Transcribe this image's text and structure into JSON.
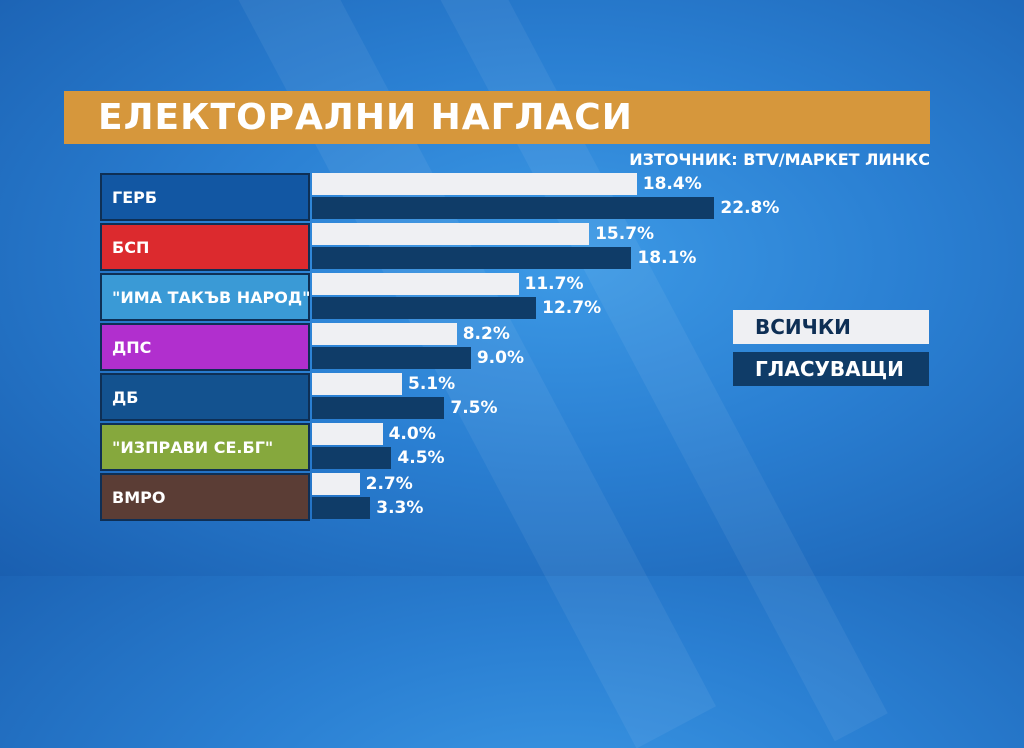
{
  "title": "ЕЛЕКТОРАЛНИ НАГЛАСИ",
  "source": "ИЗТОЧНИК: BTV/МАРКЕТ ЛИНКС",
  "legend": {
    "all": "ВСИЧКИ",
    "voters": "ГЛАСУВАЩИ"
  },
  "colors": {
    "title_bg": "#d6973c",
    "all_bar": "#eff0f3",
    "voters_bar": "#0f3c68",
    "gerb": "#1257a3",
    "bsp": "#dc2a2e",
    "itn": "#3a9ad6",
    "dps": "#b12fce",
    "db": "#13528f",
    "izpravi": "#86a83d",
    "vmro": "#5b3d35"
  },
  "chart_data": {
    "type": "bar",
    "orientation": "horizontal",
    "title": "ЕЛЕКТОРАЛНИ НАГЛАСИ",
    "categories": [
      "ГЕРБ",
      "БСП",
      "\"ИМА ТАКЪВ НАРОД\"",
      "ДПС",
      "ДБ",
      "\"ИЗПРАВИ СЕ.БГ\"",
      "ВМРО"
    ],
    "series": [
      {
        "name": "ВСИЧКИ",
        "values": [
          18.4,
          15.7,
          11.7,
          8.2,
          5.1,
          4.0,
          2.7
        ],
        "labels": [
          "18.4%",
          "15.7%",
          "11.7%",
          "8.2%",
          "5.1%",
          "4.0%",
          "2.7%"
        ]
      },
      {
        "name": "ГЛАСУВАЩИ",
        "values": [
          22.8,
          18.1,
          12.7,
          9.0,
          7.5,
          4.5,
          3.3
        ],
        "labels": [
          "22.8%",
          "18.1%",
          "12.7%",
          "9.0%",
          "7.5%",
          "4.5%",
          "3.3%"
        ]
      }
    ],
    "category_colors": [
      "#1257a3",
      "#dc2a2e",
      "#3a9ad6",
      "#b12fce",
      "#13528f",
      "#86a83d",
      "#5b3d35"
    ],
    "legend_position": "right",
    "grid": false
  }
}
